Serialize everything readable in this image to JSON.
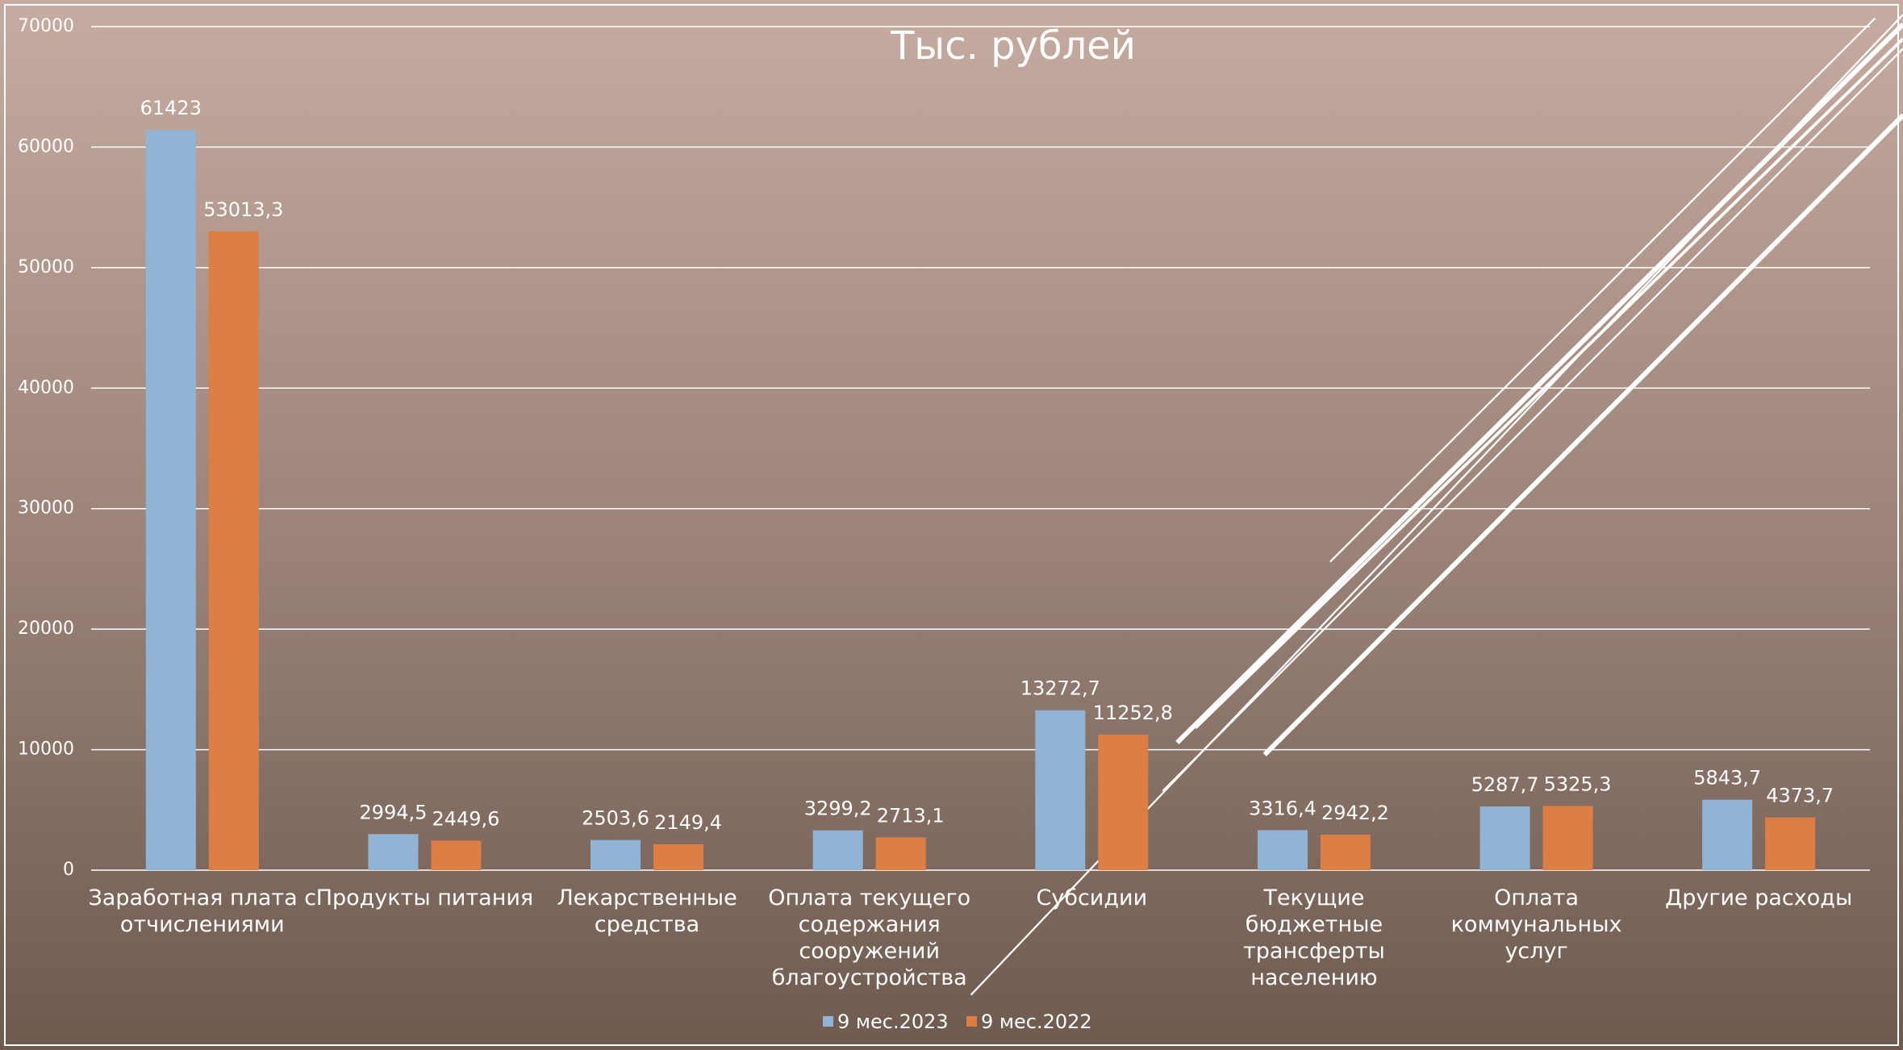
{
  "chart_data": {
    "type": "bar",
    "title": "Тыс. рублей",
    "categories": [
      "Заработная плата с отчислениями",
      "Продукты питания",
      "Лекарственные средства",
      "Оплата текущего содержания сооружений благоустройства",
      "Субсидии",
      "Текущие бюджетные трансферты населению",
      "Оплата коммунальных услуг",
      "Другие расходы"
    ],
    "series": [
      {
        "name": "9 мес.2023",
        "color": "#92b4d4",
        "values": [
          61423,
          2994.5,
          2503.6,
          3299.2,
          13272.7,
          3316.4,
          5287.7,
          5843.7
        ],
        "value_labels": [
          "61423",
          "2994,5",
          "2503,6",
          "3299,2",
          "13272,7",
          "3316,4",
          "5287,7",
          "5843,7"
        ]
      },
      {
        "name": "9 мес.2022",
        "color": "#dd7e45",
        "values": [
          53013.3,
          2449.6,
          2149.4,
          2713.1,
          11252.8,
          2942.2,
          5325.3,
          4373.7
        ],
        "value_labels": [
          "53013,3",
          "2449,6",
          "2149,4",
          "2713,1",
          "11252,8",
          "2942,2",
          "5325,3",
          "4373,7"
        ]
      }
    ],
    "ylim": [
      0,
      70000
    ],
    "yticks": [
      0,
      10000,
      20000,
      30000,
      40000,
      50000,
      60000,
      70000
    ],
    "grid": true
  }
}
